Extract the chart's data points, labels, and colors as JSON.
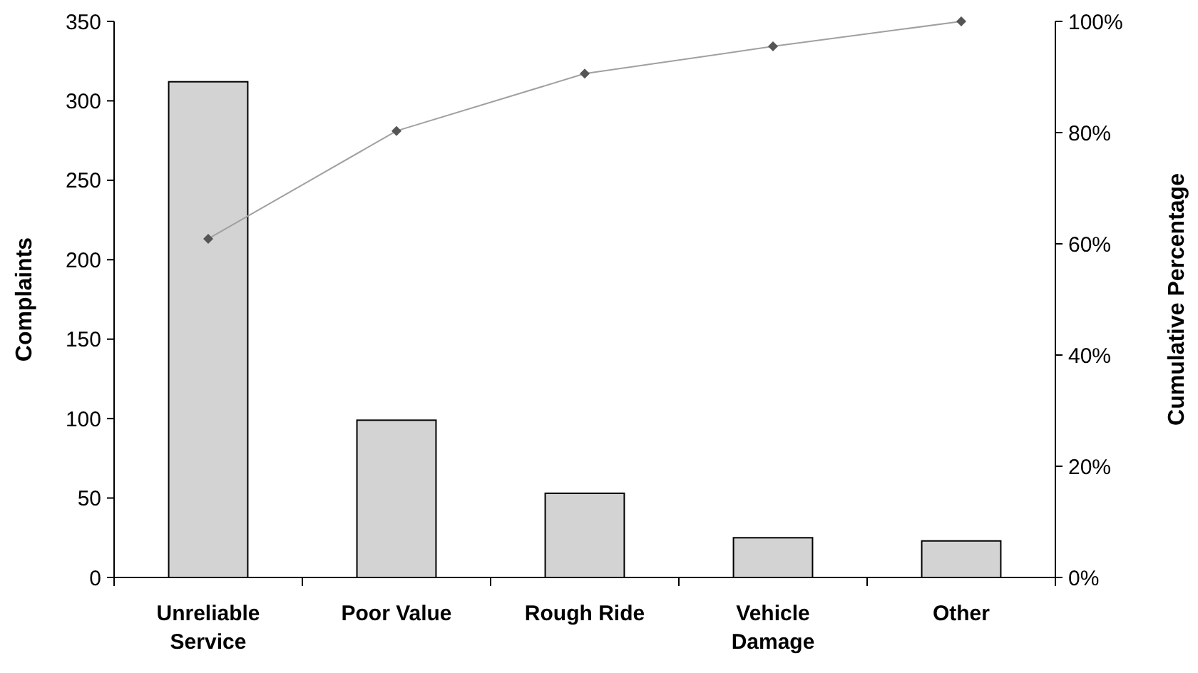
{
  "chart_data": {
    "type": "bar",
    "ylabel": "Complaints",
    "y2label": "Cumulative Percentage",
    "categories": [
      "Unreliable Service",
      "Poor Value",
      "Rough Ride",
      "Vehicle Damage",
      "Other"
    ],
    "series": [
      {
        "color": "#d3d3d3",
        "values": [
          312,
          99,
          53,
          25,
          23
        ]
      },
      {
        "type": "line",
        "axis": "y2",
        "color": "#a0a0a0",
        "marker": "diamond",
        "values": [
          60.9,
          80.3,
          90.6,
          95.5,
          100
        ]
      }
    ],
    "ylim": [
      0,
      350
    ],
    "yticks": [
      0,
      50,
      100,
      150,
      200,
      250,
      300,
      350
    ],
    "y2lim": [
      0,
      100
    ],
    "y2ticks": [
      {
        "value": 0,
        "label": "0%"
      },
      {
        "value": 20,
        "label": "20%"
      },
      {
        "value": 40,
        "label": "40%"
      },
      {
        "value": 60,
        "label": "60%"
      },
      {
        "value": 80,
        "label": "80%"
      },
      {
        "value": 100,
        "label": "100%"
      }
    ],
    "grid": false
  }
}
